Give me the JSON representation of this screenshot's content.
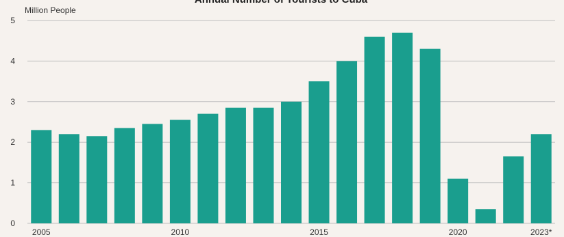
{
  "chart_data": {
    "type": "bar",
    "title": "Annual Number of Tourists to Cuba",
    "unit_label": "Million People",
    "categories": [
      "2005",
      "2006",
      "2007",
      "2008",
      "2009",
      "2010",
      "2011",
      "2012",
      "2013",
      "2014",
      "2015",
      "2016",
      "2017",
      "2018",
      "2019",
      "2020",
      "2021",
      "2022",
      "2023*"
    ],
    "x_tick_labels": [
      "2005",
      "2010",
      "2015",
      "2020",
      "2023*"
    ],
    "values": [
      2.3,
      2.2,
      2.15,
      2.35,
      2.45,
      2.55,
      2.7,
      2.85,
      2.85,
      3.0,
      3.5,
      4.0,
      4.6,
      4.7,
      4.3,
      1.1,
      0.35,
      1.65,
      2.2
    ],
    "ylim": [
      0,
      5
    ],
    "yticks": [
      0,
      1,
      2,
      3,
      4,
      5
    ],
    "grid": true,
    "colors": {
      "bar": "#1a9e8e",
      "grid": "#bdbdbd",
      "background": "#f6f2ee"
    }
  }
}
